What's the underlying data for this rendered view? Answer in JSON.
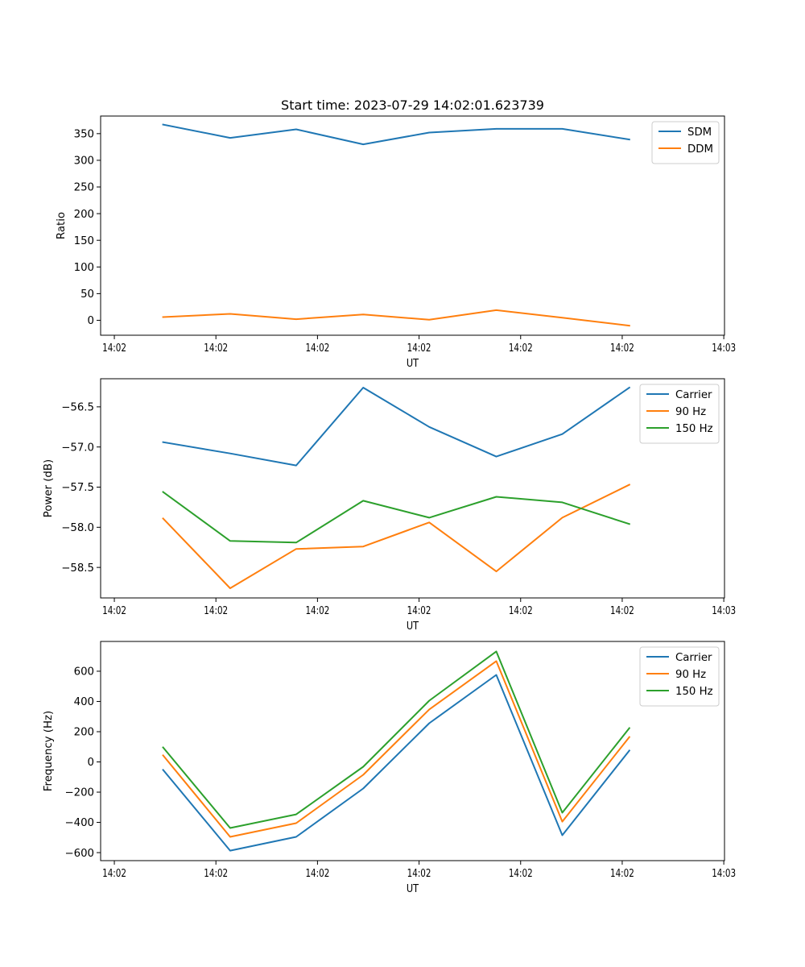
{
  "figure": {
    "title": "Start time: 2023-07-29 14:02:01.623739"
  },
  "chart_data": [
    {
      "type": "line",
      "title": "Start time: 2023-07-29 14:02:01.623739",
      "xlabel": "UT",
      "ylabel": "Ratio",
      "x_unit": "seconds after 14:02:00",
      "x": [
        4.8,
        11.4,
        17.9,
        24.5,
        31.0,
        37.6,
        44.1,
        50.7
      ],
      "xlim": [
        -1.35,
        60.07
      ],
      "xticks": [
        0,
        10,
        20,
        30,
        40,
        50,
        60
      ],
      "xtick_labels": [
        "14:02",
        "14:02",
        "14:02",
        "14:02",
        "14:02",
        "14:02",
        "14:03"
      ],
      "ylim": [
        -28,
        383
      ],
      "yticks": [
        0,
        50,
        100,
        150,
        200,
        250,
        300,
        350
      ],
      "ytick_labels": [
        "0",
        "50",
        "100",
        "150",
        "200",
        "250",
        "300",
        "350"
      ],
      "grid": false,
      "legend_position": "top-right",
      "series": [
        {
          "name": "SDM",
          "color": "#1f77b4",
          "values": [
            367,
            342,
            358,
            330,
            352,
            359,
            359,
            339
          ]
        },
        {
          "name": "DDM",
          "color": "#ff7f0e",
          "values": [
            6,
            12,
            2,
            11,
            1,
            19,
            5,
            -10
          ]
        }
      ]
    },
    {
      "type": "line",
      "title": "",
      "xlabel": "UT",
      "ylabel": "Power (dB)",
      "x_unit": "seconds after 14:02:00",
      "x": [
        4.8,
        11.4,
        17.9,
        24.5,
        31.0,
        37.6,
        44.1,
        50.7
      ],
      "xlim": [
        -1.35,
        60.07
      ],
      "xticks": [
        0,
        10,
        20,
        30,
        40,
        50,
        60
      ],
      "xtick_labels": [
        "14:02",
        "14:02",
        "14:02",
        "14:02",
        "14:02",
        "14:02",
        "14:03"
      ],
      "ylim": [
        -58.88,
        -56.15
      ],
      "yticks": [
        -58.5,
        -58.0,
        -57.5,
        -57.0,
        -56.5
      ],
      "ytick_labels": [
        "−58.5",
        "−58.0",
        "−57.5",
        "−57.0",
        "−56.5"
      ],
      "grid": false,
      "legend_position": "top-right",
      "series": [
        {
          "name": "Carrier",
          "color": "#1f77b4",
          "values": [
            -56.94,
            -57.08,
            -57.23,
            -56.26,
            -56.75,
            -57.12,
            -56.84,
            -56.26
          ]
        },
        {
          "name": "90 Hz",
          "color": "#ff7f0e",
          "values": [
            -57.89,
            -58.76,
            -58.27,
            -58.24,
            -57.94,
            -58.55,
            -57.88,
            -57.47
          ]
        },
        {
          "name": "150 Hz",
          "color": "#2ca02c",
          "values": [
            -57.56,
            -58.17,
            -58.19,
            -57.67,
            -57.88,
            -57.62,
            -57.69,
            -57.96
          ]
        }
      ]
    },
    {
      "type": "line",
      "title": "",
      "xlabel": "UT",
      "ylabel": "Frequency (Hz)",
      "x_unit": "seconds after 14:02:00",
      "x": [
        4.8,
        11.4,
        17.9,
        24.5,
        31.0,
        37.6,
        44.1,
        50.7
      ],
      "xlim": [
        -1.35,
        60.07
      ],
      "xticks": [
        0,
        10,
        20,
        30,
        40,
        50,
        60
      ],
      "xtick_labels": [
        "14:02",
        "14:02",
        "14:02",
        "14:02",
        "14:02",
        "14:02",
        "14:03"
      ],
      "ylim": [
        -653,
        797
      ],
      "yticks": [
        -600,
        -400,
        -200,
        0,
        200,
        400,
        600
      ],
      "ytick_labels": [
        "−600",
        "−400",
        "−200",
        "0",
        "200",
        "400",
        "600"
      ],
      "grid": false,
      "legend_position": "top-right",
      "series": [
        {
          "name": "Carrier",
          "color": "#1f77b4",
          "values": [
            -53,
            -587,
            -496,
            -176,
            256,
            576,
            -485,
            75
          ]
        },
        {
          "name": "90 Hz",
          "color": "#ff7f0e",
          "values": [
            43,
            -496,
            -405,
            -85,
            347,
            667,
            -395,
            165
          ]
        },
        {
          "name": "150 Hz",
          "color": "#2ca02c",
          "values": [
            96,
            -437,
            -347,
            -32,
            405,
            731,
            -336,
            224
          ]
        }
      ]
    }
  ]
}
